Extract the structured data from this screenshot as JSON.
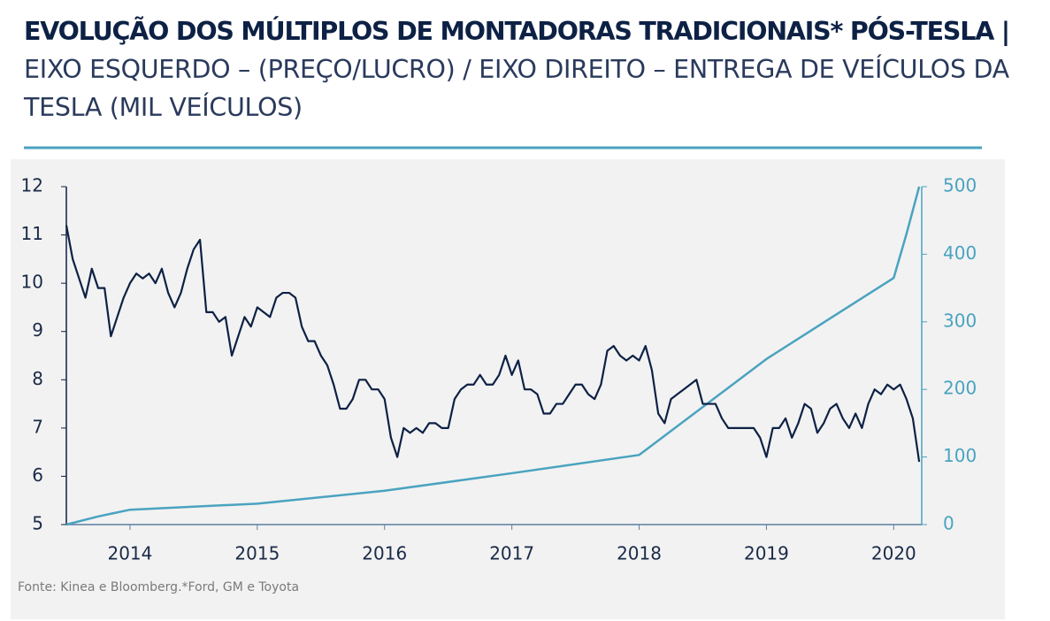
{
  "chart_data": {
    "type": "line",
    "title": "EVOLUÇÃO DOS MÚLTIPLOS DE MONTADORAS TRADICIONAIS* PÓS-TESLA |",
    "subtitle": "EIXO ESQUERDO – (PREÇO/LUCRO) / EIXO DIREITO – ENTREGA DE VEÍCULOS DA TESLA (MIL VEÍCULOS)",
    "source": "Fonte: Kinea e Bloomberg.*Ford, GM e Toyota",
    "xlim": [
      2013.5,
      2020.22
    ],
    "xticks": [
      2014,
      2015,
      2016,
      2017,
      2018,
      2019,
      2020
    ],
    "ylim": [
      5,
      12
    ],
    "yticks": [
      5,
      6,
      7,
      8,
      9,
      10,
      11,
      12
    ],
    "y2lim": [
      0,
      500
    ],
    "y2ticks": [
      0,
      100,
      200,
      300,
      400,
      500
    ],
    "series": [
      {
        "color": "#0d2145",
        "x": [
          2013.5,
          2013.55,
          2013.6,
          2013.65,
          2013.7,
          2013.75,
          2013.8,
          2013.85,
          2013.9,
          2013.95,
          2014,
          2014.05,
          2014.1,
          2014.15,
          2014.2,
          2014.25,
          2014.3,
          2014.35,
          2014.4,
          2014.45,
          2014.5,
          2014.55,
          2014.6,
          2014.65,
          2014.7,
          2014.75,
          2014.8,
          2014.85,
          2014.9,
          2014.95,
          2015,
          2015.05,
          2015.1,
          2015.15,
          2015.2,
          2015.25,
          2015.3,
          2015.35,
          2015.4,
          2015.45,
          2015.5,
          2015.55,
          2015.6,
          2015.65,
          2015.7,
          2015.75,
          2015.8,
          2015.85,
          2015.9,
          2015.95,
          2016,
          2016.05,
          2016.1,
          2016.15,
          2016.2,
          2016.25,
          2016.3,
          2016.35,
          2016.4,
          2016.45,
          2016.5,
          2016.55,
          2016.6,
          2016.65,
          2016.7,
          2016.75,
          2016.8,
          2016.85,
          2016.9,
          2016.95,
          2017,
          2017.05,
          2017.1,
          2017.15,
          2017.2,
          2017.25,
          2017.3,
          2017.35,
          2017.4,
          2017.45,
          2017.5,
          2017.55,
          2017.6,
          2017.65,
          2017.7,
          2017.75,
          2017.8,
          2017.85,
          2017.9,
          2017.95,
          2018,
          2018.05,
          2018.1,
          2018.15,
          2018.2,
          2018.25,
          2018.3,
          2018.35,
          2018.4,
          2018.45,
          2018.5,
          2018.55,
          2018.6,
          2018.65,
          2018.7,
          2018.75,
          2018.8,
          2018.85,
          2018.9,
          2018.95,
          2019,
          2019.05,
          2019.1,
          2019.15,
          2019.2,
          2019.25,
          2019.3,
          2019.35,
          2019.4,
          2019.45,
          2019.5,
          2019.55,
          2019.6,
          2019.65,
          2019.7,
          2019.75,
          2019.8,
          2019.85,
          2019.9,
          2019.95,
          2020,
          2020.05,
          2020.1,
          2020.15,
          2020.2
        ],
        "values": [
          11.2,
          10.5,
          10.1,
          9.7,
          10.3,
          9.9,
          9.9,
          8.9,
          9.3,
          9.7,
          10.0,
          10.2,
          10.1,
          10.2,
          10.0,
          10.3,
          9.8,
          9.5,
          9.8,
          10.3,
          10.7,
          10.9,
          9.4,
          9.4,
          9.2,
          9.3,
          8.5,
          8.9,
          9.3,
          9.1,
          9.5,
          9.4,
          9.3,
          9.7,
          9.8,
          9.8,
          9.7,
          9.1,
          8.8,
          8.8,
          8.5,
          8.3,
          7.9,
          7.4,
          7.4,
          7.6,
          8.0,
          8.0,
          7.8,
          7.8,
          7.6,
          6.8,
          6.4,
          7.0,
          6.9,
          7.0,
          6.9,
          7.1,
          7.1,
          7.0,
          7.0,
          7.6,
          7.8,
          7.9,
          7.9,
          8.1,
          7.9,
          7.9,
          8.1,
          8.5,
          8.1,
          8.4,
          7.8,
          7.8,
          7.7,
          7.3,
          7.3,
          7.5,
          7.5,
          7.7,
          7.9,
          7.9,
          7.7,
          7.6,
          7.9,
          8.6,
          8.7,
          8.5,
          8.4,
          8.5,
          8.4,
          8.7,
          8.2,
          7.3,
          7.1,
          7.6,
          7.7,
          7.8,
          7.9,
          8.0,
          7.5,
          7.5,
          7.5,
          7.2,
          7.0,
          7.0,
          7.0,
          7.0,
          7.0,
          6.8,
          6.4,
          7.0,
          7.0,
          7.2,
          6.8,
          7.1,
          7.5,
          7.4,
          6.9,
          7.1,
          7.4,
          7.5,
          7.2,
          7.0,
          7.3,
          7.0,
          7.5,
          7.8,
          7.7,
          7.9,
          7.8,
          7.9,
          7.6,
          7.2,
          6.3
        ]
      },
      {
        "color": "#4aa3c0",
        "axis": "y2",
        "x": [
          2013.5,
          2013.75,
          2014,
          2015,
          2016,
          2017,
          2018,
          2019,
          2019.5,
          2020,
          2020.1,
          2020.2
        ],
        "values": [
          0,
          12,
          22,
          31,
          50,
          76,
          103,
          245,
          305,
          365,
          430,
          500
        ]
      }
    ]
  }
}
